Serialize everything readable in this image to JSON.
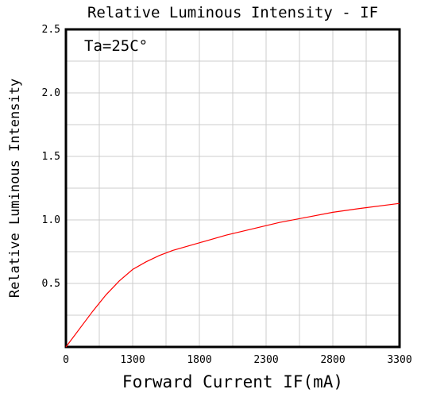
{
  "chart_data": {
    "type": "line",
    "title": "Relative Luminous Intensity - IF",
    "xlabel": "Forward Current IF(mA)",
    "ylabel": "Relative Luminous Intensity",
    "annotation": "Ta=25C°",
    "x_ticks": [
      "0",
      "1300",
      "1800",
      "2300",
      "2800",
      "3300"
    ],
    "y_ticks": [
      "0.5",
      "1.0",
      "1.5",
      "2.0",
      "2.5"
    ],
    "xlim": [
      800,
      3300
    ],
    "ylim": [
      0,
      2.5
    ],
    "grid": true,
    "series": [
      {
        "color": "#ff0000",
        "x": [
          800,
          1000,
          1100,
          1200,
          1300,
          1400,
          1500,
          1600,
          1800,
          2000,
          2200,
          2400,
          2600,
          2800,
          3000,
          3300
        ],
        "y": [
          0.0,
          0.28,
          0.41,
          0.52,
          0.61,
          0.67,
          0.72,
          0.76,
          0.82,
          0.88,
          0.93,
          0.98,
          1.02,
          1.06,
          1.09,
          1.13
        ]
      }
    ]
  }
}
